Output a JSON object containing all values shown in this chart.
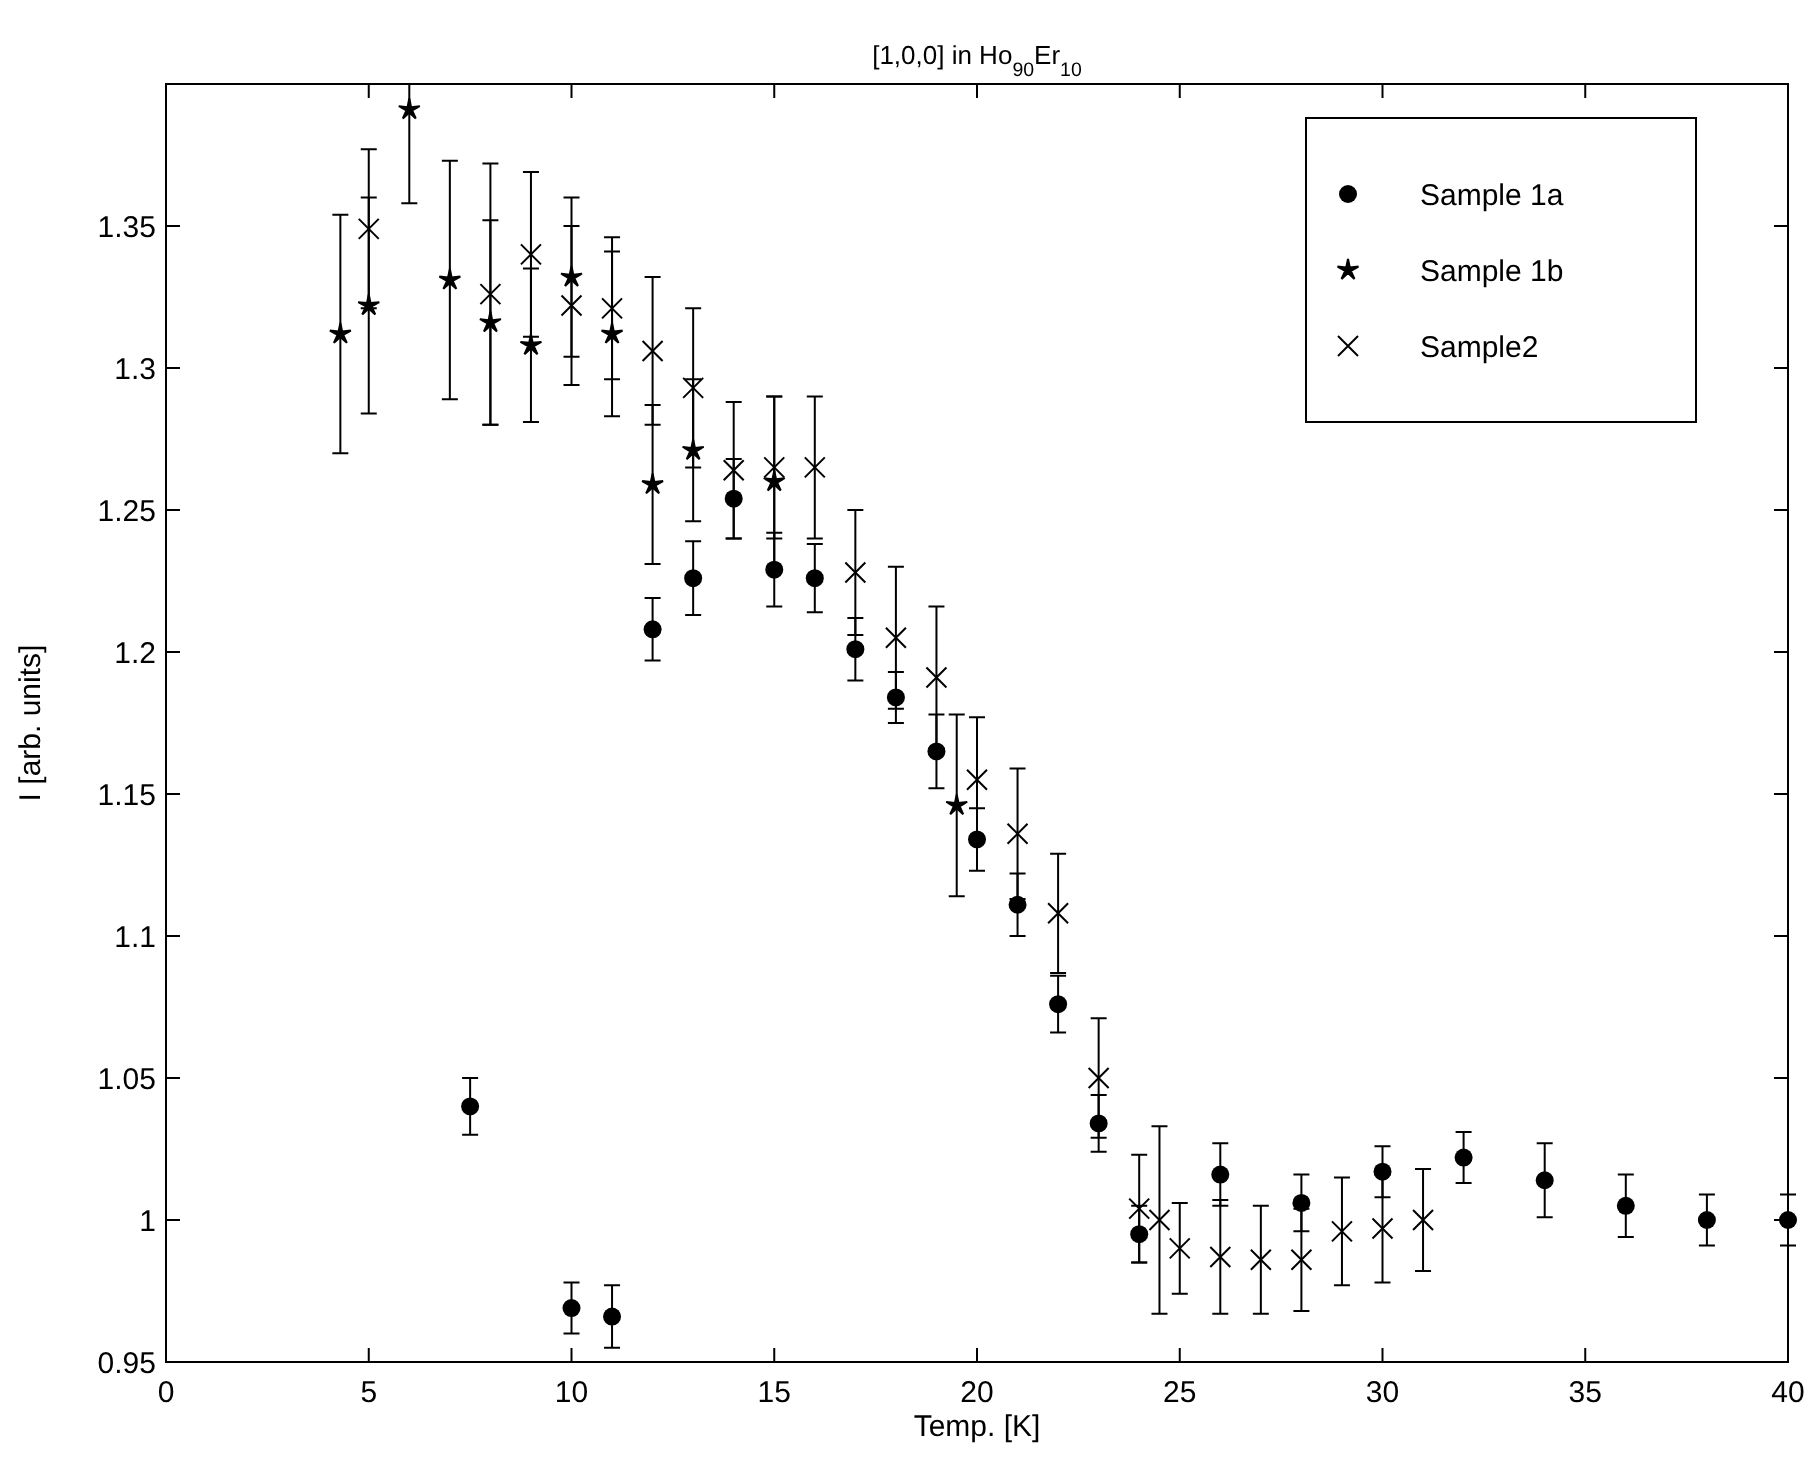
{
  "chart_data": {
    "type": "scatter",
    "title": "[1,0,0] in Ho$_{90}$Er$_{10}$",
    "xlabel": "Temp. [K]",
    "ylabel": "I [arb. units]",
    "xlim": [
      0,
      40
    ],
    "xticks": [
      0,
      5,
      10,
      15,
      20,
      25,
      30,
      35,
      40
    ],
    "ylim": [
      0.95,
      1.4
    ],
    "yticks": [
      0.95,
      1,
      1.05,
      1.1,
      1.15,
      1.2,
      1.25,
      1.3,
      1.35
    ],
    "grid": false,
    "legend": "top right",
    "series": [
      {
        "name": "Sample 1a",
        "color": "#000000",
        "marker": "circle",
        "x": [
          7.5,
          10,
          11,
          12,
          13,
          14,
          15,
          16,
          17,
          18,
          19,
          20,
          21,
          22,
          23,
          24,
          26,
          28,
          30,
          32,
          34,
          36,
          38,
          40
        ],
        "values": [
          1.04,
          0.969,
          0.966,
          1.208,
          1.226,
          1.254,
          1.229,
          1.226,
          1.201,
          1.184,
          1.165,
          1.134,
          1.111,
          1.076,
          1.034,
          0.995,
          1.016,
          1.006,
          1.017,
          1.022,
          1.014,
          1.005,
          1.0,
          1.0
        ],
        "errors": [
          0.01,
          0.009,
          0.011,
          0.011,
          0.013,
          0.014,
          0.013,
          0.012,
          0.011,
          0.009,
          0.013,
          0.011,
          0.011,
          0.01,
          0.01,
          0.01,
          0.011,
          0.01,
          0.009,
          0.009,
          0.013,
          0.011,
          0.009,
          0.009
        ]
      },
      {
        "name": "Sample 1b",
        "color": "#000000",
        "marker": "star",
        "x": [
          4.3,
          5,
          6,
          7,
          8,
          9,
          10,
          11,
          12,
          13,
          15,
          19.5
        ],
        "values": [
          1.312,
          1.322,
          1.391,
          1.331,
          1.316,
          1.308,
          1.332,
          1.312,
          1.259,
          1.271,
          1.26,
          1.146
        ],
        "errors": [
          0.042,
          0.038,
          [
            1.358,
            1.4
          ],
          0.042,
          0.036,
          0.027,
          0.028,
          0.029,
          0.028,
          0.025,
          0.03,
          0.032
        ]
      },
      {
        "name": "Sample2",
        "color": "#000000",
        "marker": "cross",
        "x": [
          5,
          8,
          9,
          10,
          11,
          12,
          13,
          14,
          15,
          16,
          17,
          18,
          19,
          20,
          21,
          22,
          23,
          24,
          24.5,
          25,
          26,
          27,
          28,
          29,
          30,
          31
        ],
        "values": [
          1.349,
          1.326,
          1.34,
          1.322,
          1.321,
          1.306,
          1.293,
          1.264,
          1.265,
          1.265,
          1.228,
          1.205,
          1.191,
          1.155,
          1.136,
          1.108,
          1.05,
          1.004,
          1.0,
          0.99,
          0.987,
          0.986,
          0.986,
          0.996,
          0.997,
          1.0
        ],
        "errors": [
          0.028,
          0.046,
          0.029,
          0.028,
          0.025,
          0.026,
          0.028,
          0.024,
          0.025,
          0.025,
          0.022,
          0.025,
          0.025,
          0.022,
          0.023,
          0.021,
          0.021,
          0.019,
          0.033,
          0.016,
          0.02,
          0.019,
          0.018,
          0.019,
          0.019,
          0.018
        ]
      }
    ]
  }
}
